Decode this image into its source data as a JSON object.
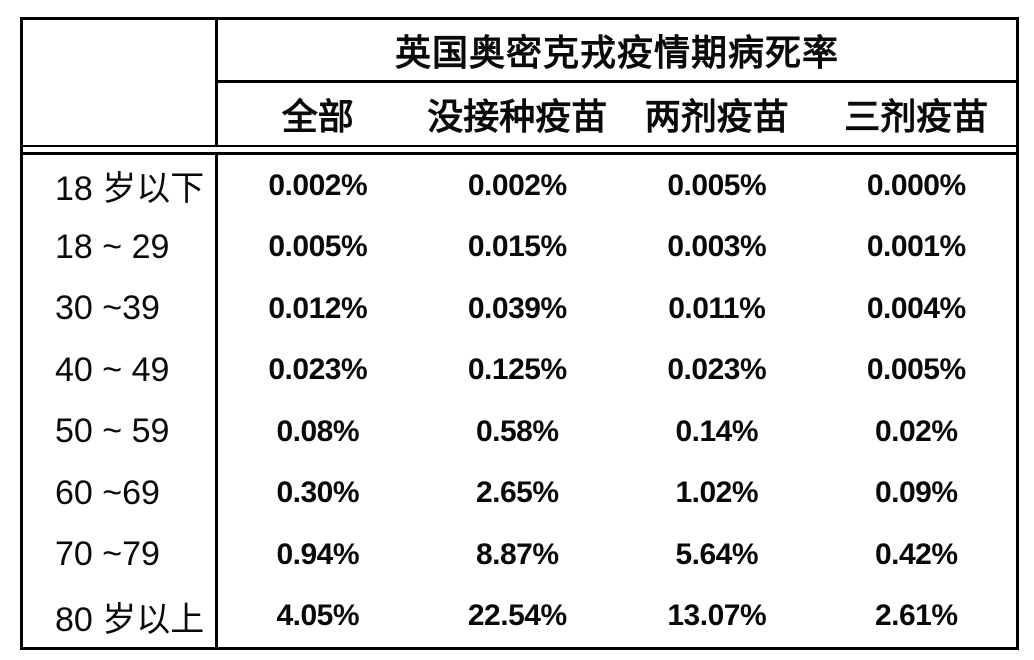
{
  "table": {
    "title": "英国奥密克戎疫情期病死率",
    "columns": [
      "全部",
      "没接种疫苗",
      "两剂疫苗",
      "三剂疫苗"
    ],
    "rows": [
      {
        "label": "18 岁以下",
        "values": [
          "0.002%",
          "0.002%",
          "0.005%",
          "0.000%"
        ]
      },
      {
        "label": "18 ~ 29",
        "values": [
          "0.005%",
          "0.015%",
          "0.003%",
          "0.001%"
        ]
      },
      {
        "label": "30 ~39",
        "values": [
          "0.012%",
          "0.039%",
          "0.011%",
          "0.004%"
        ]
      },
      {
        "label": "40 ~ 49",
        "values": [
          "0.023%",
          "0.125%",
          "0.023%",
          "0.005%"
        ]
      },
      {
        "label": "50 ~ 59",
        "values": [
          "0.08%",
          "0.58%",
          "0.14%",
          "0.02%"
        ]
      },
      {
        "label": "60 ~69",
        "values": [
          "0.30%",
          "2.65%",
          "1.02%",
          "0.09%"
        ]
      },
      {
        "label": "70 ~79",
        "values": [
          "0.94%",
          "8.87%",
          "5.64%",
          "0.42%"
        ]
      },
      {
        "label": "80 岁以上",
        "values": [
          "4.05%",
          "22.54%",
          "13.07%",
          "2.61%"
        ]
      }
    ],
    "colors": {
      "border": "#000000",
      "text": "#0a0a0a",
      "background": "#ffffff"
    }
  },
  "chart_data": {
    "type": "table",
    "title": "英国奥密克戎疫情期病死率",
    "columns": [
      "全部",
      "没接种疫苗",
      "两剂疫苗",
      "三剂疫苗"
    ],
    "row_labels": [
      "18 岁以下",
      "18 ~ 29",
      "30 ~39",
      "40 ~ 49",
      "50 ~ 59",
      "60 ~69",
      "70 ~79",
      "80 岁以上"
    ],
    "values_percent": [
      [
        0.002,
        0.002,
        0.005,
        0.0
      ],
      [
        0.005,
        0.015,
        0.003,
        0.001
      ],
      [
        0.012,
        0.039,
        0.011,
        0.004
      ],
      [
        0.023,
        0.125,
        0.023,
        0.005
      ],
      [
        0.08,
        0.58,
        0.14,
        0.02
      ],
      [
        0.3,
        2.65,
        1.02,
        0.09
      ],
      [
        0.94,
        8.87,
        5.64,
        0.42
      ],
      [
        4.05,
        22.54,
        13.07,
        2.61
      ]
    ],
    "layout": {
      "header_rule": "double",
      "inner_gridlines": false,
      "row_header_divider": true
    }
  }
}
